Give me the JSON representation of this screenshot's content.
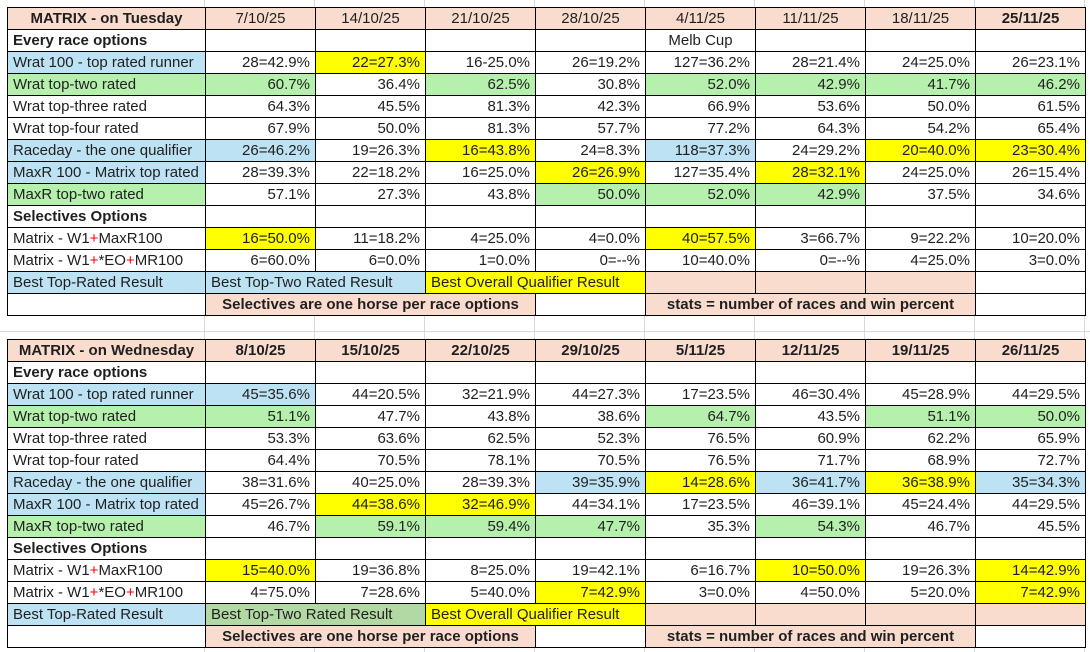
{
  "colors": {
    "peach": "#FADCCF",
    "blue": "#BDE2F3",
    "green": "#B5F1AC",
    "green2": "#B2D9A3",
    "yellow": "#FFFF00",
    "red": "#FF0000"
  },
  "layout_note": "two race-statistics matrices",
  "tables": [
    {
      "title": "MATRIX - on Tuesday",
      "dates": [
        "7/10/25",
        "14/10/25",
        "21/10/25",
        "28/10/25",
        "4/11/25",
        "11/11/25",
        "18/11/25",
        "25/11/25"
      ],
      "dates_bold": [
        false,
        false,
        false,
        false,
        false,
        false,
        false,
        true
      ],
      "rows": [
        {
          "sec": true,
          "label": "Every race options",
          "extra_col": 4,
          "extra_text": "Melb Cup"
        },
        {
          "label": "Wrat 100 - top rated runner",
          "lbg": "b",
          "cells": [
            [
              "28=42.9%",
              ""
            ],
            [
              "22=27.3%",
              "y"
            ],
            [
              "16-25.0%",
              ""
            ],
            [
              "26=19.2%",
              ""
            ],
            [
              "127=36.2%",
              ""
            ],
            [
              "28=21.4%",
              ""
            ],
            [
              "24=25.0%",
              ""
            ],
            [
              "26=23.1%",
              ""
            ]
          ]
        },
        {
          "label": "Wrat top-two rated",
          "lbg": "g",
          "cells": [
            [
              "60.7%",
              "g"
            ],
            [
              "36.4%",
              ""
            ],
            [
              "62.5%",
              "g"
            ],
            [
              "30.8%",
              ""
            ],
            [
              "52.0%",
              "g"
            ],
            [
              "42.9%",
              "g"
            ],
            [
              "41.7%",
              "g"
            ],
            [
              "46.2%",
              "g"
            ]
          ]
        },
        {
          "label": "Wrat top-three rated",
          "lbg": "w",
          "cells": [
            [
              "64.3%",
              ""
            ],
            [
              "45.5%",
              ""
            ],
            [
              "81.3%",
              ""
            ],
            [
              "42.3%",
              ""
            ],
            [
              "66.9%",
              ""
            ],
            [
              "53.6%",
              ""
            ],
            [
              "50.0%",
              ""
            ],
            [
              "61.5%",
              ""
            ]
          ]
        },
        {
          "label": "Wrat top-four rated",
          "lbg": "w",
          "cells": [
            [
              "67.9%",
              ""
            ],
            [
              "50.0%",
              ""
            ],
            [
              "81.3%",
              ""
            ],
            [
              "57.7%",
              ""
            ],
            [
              "77.2%",
              ""
            ],
            [
              "64.3%",
              ""
            ],
            [
              "54.2%",
              ""
            ],
            [
              "65.4%",
              ""
            ]
          ]
        },
        {
          "label": "Raceday - the one qualifier",
          "lbg": "b",
          "cells": [
            [
              "26=46.2%",
              "b"
            ],
            [
              "19=26.3%",
              ""
            ],
            [
              "16=43.8%",
              "y"
            ],
            [
              "24=8.3%",
              ""
            ],
            [
              "118=37.3%",
              "b"
            ],
            [
              "24=29.2%",
              ""
            ],
            [
              "20=40.0%",
              "y"
            ],
            [
              "23=30.4%",
              "y"
            ]
          ]
        },
        {
          "label": "MaxR 100 - Matrix top rated",
          "lbg": "b",
          "cells": [
            [
              "28=39.3%",
              ""
            ],
            [
              "22=18.2%",
              ""
            ],
            [
              "16=25.0%",
              ""
            ],
            [
              "26=26.9%",
              "y"
            ],
            [
              "127=35.4%",
              ""
            ],
            [
              "28=32.1%",
              "y"
            ],
            [
              "24=25.0%",
              ""
            ],
            [
              "26=15.4%",
              ""
            ]
          ]
        },
        {
          "label": "MaxR top-two rated",
          "lbg": "g",
          "cells": [
            [
              "57.1%",
              ""
            ],
            [
              "27.3%",
              ""
            ],
            [
              "43.8%",
              ""
            ],
            [
              "50.0%",
              "g"
            ],
            [
              "52.0%",
              "g"
            ],
            [
              "42.9%",
              "g"
            ],
            [
              "37.5%",
              ""
            ],
            [
              "34.6%",
              ""
            ]
          ]
        },
        {
          "sec": true,
          "label": "Selectives Options"
        },
        {
          "label": "Matrix - W1+MaxR100",
          "lbg": "w",
          "red_plus": true,
          "cells": [
            [
              "16=50.0%",
              "y"
            ],
            [
              "11=18.2%",
              ""
            ],
            [
              "4=25.0%",
              ""
            ],
            [
              "4=0.0%",
              ""
            ],
            [
              "40=57.5%",
              "y"
            ],
            [
              "3=66.7%",
              ""
            ],
            [
              "9=22.2%",
              ""
            ],
            [
              "10=20.0%",
              ""
            ]
          ]
        },
        {
          "label": "Matrix - W1+*EO+MR100",
          "lbg": "w",
          "red_plus": true,
          "cells": [
            [
              "6=60.0%",
              ""
            ],
            [
              "6=0.0%",
              ""
            ],
            [
              "1=0.0%",
              ""
            ],
            [
              "0=--%",
              ""
            ],
            [
              "10=40.0%",
              ""
            ],
            [
              "0=--%",
              ""
            ],
            [
              "4=25.0%",
              ""
            ],
            [
              "3=0.0%",
              ""
            ]
          ]
        }
      ],
      "footer": {
        "label": [
          "Best Top-Rated Result",
          "b"
        ],
        "twocol": [
          "Best Top-Two Rated Result",
          "b"
        ],
        "overall": [
          "Best Overall Qualifier Result",
          "y"
        ],
        "tail": [
          "p",
          "p",
          "p",
          "w"
        ]
      },
      "notes": {
        "left": "Selectives are one horse per race options",
        "right": "stats = number of races and win percent"
      }
    },
    {
      "title": "MATRIX - on Wednesday",
      "dates": [
        "8/10/25",
        "15/10/25",
        "22/10/25",
        "29/10/25",
        "5/11/25",
        "12/11/25",
        "19/11/25",
        "26/11/25"
      ],
      "dates_bold": [
        true,
        true,
        true,
        true,
        true,
        true,
        true,
        true
      ],
      "rows": [
        {
          "sec": true,
          "label": "Every race options"
        },
        {
          "label": "Wrat 100 - top rated runner",
          "lbg": "b",
          "cells": [
            [
              "45=35.6%",
              "b"
            ],
            [
              "44=20.5%",
              ""
            ],
            [
              "32=21.9%",
              ""
            ],
            [
              "44=27.3%",
              ""
            ],
            [
              "17=23.5%",
              ""
            ],
            [
              "46=30.4%",
              ""
            ],
            [
              "45=28.9%",
              ""
            ],
            [
              "44=29.5%",
              ""
            ]
          ]
        },
        {
          "label": "Wrat top-two rated",
          "lbg": "g",
          "cells": [
            [
              "51.1%",
              "g"
            ],
            [
              "47.7%",
              ""
            ],
            [
              "43.8%",
              ""
            ],
            [
              "38.6%",
              ""
            ],
            [
              "64.7%",
              "g"
            ],
            [
              "43.5%",
              ""
            ],
            [
              "51.1%",
              "g"
            ],
            [
              "50.0%",
              "g"
            ]
          ]
        },
        {
          "label": "Wrat top-three rated",
          "lbg": "w",
          "cells": [
            [
              "53.3%",
              ""
            ],
            [
              "63.6%",
              ""
            ],
            [
              "62.5%",
              ""
            ],
            [
              "52.3%",
              ""
            ],
            [
              "76.5%",
              ""
            ],
            [
              "60.9%",
              ""
            ],
            [
              "62.2%",
              ""
            ],
            [
              "65.9%",
              ""
            ]
          ]
        },
        {
          "label": "Wrat top-four rated",
          "lbg": "w",
          "cells": [
            [
              "64.4%",
              ""
            ],
            [
              "70.5%",
              ""
            ],
            [
              "78.1%",
              ""
            ],
            [
              "70.5%",
              ""
            ],
            [
              "76.5%",
              ""
            ],
            [
              "71.7%",
              ""
            ],
            [
              "68.9%",
              ""
            ],
            [
              "72.7%",
              ""
            ]
          ]
        },
        {
          "label": "Raceday - the one qualifier",
          "lbg": "b",
          "cells": [
            [
              "38=31.6%",
              ""
            ],
            [
              "40=25.0%",
              ""
            ],
            [
              "28=39.3%",
              ""
            ],
            [
              "39=35.9%",
              "b"
            ],
            [
              "14=28.6%",
              "y"
            ],
            [
              "36=41.7%",
              "b"
            ],
            [
              "36=38.9%",
              "y"
            ],
            [
              "35=34.3%",
              "b"
            ]
          ]
        },
        {
          "label": "MaxR 100 - Matrix top rated",
          "lbg": "b",
          "cells": [
            [
              "45=26.7%",
              ""
            ],
            [
              "44=38.6%",
              "y"
            ],
            [
              "32=46.9%",
              "y"
            ],
            [
              "44=34.1%",
              ""
            ],
            [
              "17=23.5%",
              ""
            ],
            [
              "46=39.1%",
              ""
            ],
            [
              "45=24.4%",
              ""
            ],
            [
              "44=29.5%",
              ""
            ]
          ]
        },
        {
          "label": "MaxR top-two rated",
          "lbg": "g",
          "cells": [
            [
              "46.7%",
              ""
            ],
            [
              "59.1%",
              "g"
            ],
            [
              "59.4%",
              "g"
            ],
            [
              "47.7%",
              "g"
            ],
            [
              "35.3%",
              ""
            ],
            [
              "54.3%",
              "g"
            ],
            [
              "46.7%",
              ""
            ],
            [
              "45.5%",
              ""
            ]
          ]
        },
        {
          "sec": true,
          "label": "Selectives Options"
        },
        {
          "label": "Matrix - W1+MaxR100",
          "lbg": "w",
          "red_plus": true,
          "cells": [
            [
              "15=40.0%",
              "y"
            ],
            [
              "19=36.8%",
              ""
            ],
            [
              "8=25.0%",
              ""
            ],
            [
              "19=42.1%",
              ""
            ],
            [
              "6=16.7%",
              ""
            ],
            [
              "10=50.0%",
              "y"
            ],
            [
              "19=26.3%",
              ""
            ],
            [
              "14=42.9%",
              "y"
            ]
          ]
        },
        {
          "label": "Matrix - W1+*EO+MR100",
          "lbg": "w",
          "red_plus": true,
          "cells": [
            [
              "4=75.0%",
              ""
            ],
            [
              "7=28.6%",
              ""
            ],
            [
              "5=40.0%",
              ""
            ],
            [
              "7=42.9%",
              "y"
            ],
            [
              "3=0.0%",
              ""
            ],
            [
              "4=50.0%",
              ""
            ],
            [
              "5=20.0%",
              ""
            ],
            [
              "7=42.9%",
              "y"
            ]
          ]
        }
      ],
      "footer": {
        "label": [
          "Best Top-Rated Result",
          "b"
        ],
        "twocol": [
          "Best Top-Two Rated Result",
          "g2"
        ],
        "overall": [
          "Best Overall Qualifier Result",
          "y"
        ],
        "tail": [
          "p",
          "p",
          "p",
          "p"
        ]
      },
      "notes": {
        "left": "Selectives are one horse per race options",
        "right": "stats = number of races and win percent"
      }
    }
  ]
}
